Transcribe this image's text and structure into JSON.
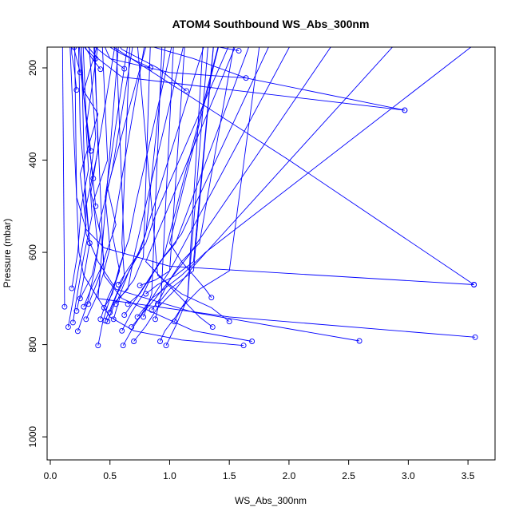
{
  "chart_data": {
    "type": "line",
    "title": "ATOM4 Southbound WS_Abs_300nm",
    "xlabel": "WS_Abs_300nm",
    "ylabel": "Pressure (mbar)",
    "xlim": [
      0,
      3.7
    ],
    "ylim": [
      1050,
      155
    ],
    "y_reversed": true,
    "x_ticks": [
      0.0,
      0.5,
      1.0,
      1.5,
      2.0,
      2.5,
      3.0,
      3.5
    ],
    "x_tick_labels": [
      "0.0",
      "0.5",
      "1.0",
      "1.5",
      "2.0",
      "2.5",
      "3.0",
      "3.5"
    ],
    "y_ticks": [
      200,
      400,
      600,
      800,
      1000
    ],
    "y_tick_labels": [
      "200",
      "400",
      "600",
      "800",
      "1000"
    ],
    "grid": false,
    "line_color": "#0000ff",
    "marker": "open-circle",
    "series": [
      {
        "x": [
          0.12,
          0.1
        ],
        "y": [
          718,
          60
        ]
      },
      {
        "x": [
          0.15,
          0.2,
          0.3,
          0.25,
          0.4,
          0.28,
          0.5
        ],
        "y": [
          762,
          690,
          540,
          430,
          300,
          250,
          60
        ]
      },
      {
        "x": [
          0.18,
          0.23,
          0.26,
          0.32,
          0.3,
          0.45
        ],
        "y": [
          678,
          600,
          500,
          420,
          330,
          60
        ]
      },
      {
        "x": [
          0.19,
          0.22,
          0.28,
          0.35,
          0.33,
          0.38,
          0.3
        ],
        "y": [
          752,
          700,
          610,
          520,
          440,
          350,
          60
        ]
      },
      {
        "x": [
          0.23,
          0.31,
          0.37,
          0.42,
          0.34,
          0.6
        ],
        "y": [
          771,
          712,
          640,
          560,
          470,
          60
        ]
      },
      {
        "x": [
          0.22,
          0.27,
          0.33,
          0.3,
          0.4,
          0.36
        ],
        "y": [
          727,
          670,
          580,
          500,
          380,
          60
        ]
      },
      {
        "x": [
          0.25,
          0.35,
          0.4,
          0.36,
          0.48,
          0.42
        ],
        "y": [
          700,
          650,
          590,
          490,
          400,
          60
        ]
      },
      {
        "x": [
          0.28,
          0.34,
          0.45,
          0.41,
          0.52,
          0.75
        ],
        "y": [
          718,
          680,
          620,
          540,
          420,
          60
        ]
      },
      {
        "x": [
          0.3,
          0.38,
          0.44,
          0.5,
          0.46,
          0.7
        ],
        "y": [
          745,
          700,
          650,
          590,
          480,
          60
        ]
      },
      {
        "x": [
          0.32,
          0.4,
          0.47,
          0.55,
          0.48,
          0.9
        ],
        "y": [
          712,
          660,
          600,
          540,
          460,
          60
        ]
      },
      {
        "x": [
          0.4,
          0.44,
          0.5,
          0.58,
          0.52,
          0.85
        ],
        "y": [
          802,
          750,
          700,
          640,
          560,
          60
        ]
      },
      {
        "x": [
          0.42,
          0.48,
          0.55,
          0.62,
          0.54
        ],
        "y": [
          745,
          700,
          660,
          600,
          60
        ]
      },
      {
        "x": [
          0.45,
          0.52,
          0.58,
          0.66,
          0.72,
          1.1
        ],
        "y": [
          720,
          690,
          630,
          570,
          490,
          60
        ]
      },
      {
        "x": [
          0.46,
          0.54,
          0.62,
          0.6,
          0.68
        ],
        "y": [
          748,
          700,
          650,
          580,
          60
        ]
      },
      {
        "x": [
          0.48,
          0.55,
          0.65,
          0.7,
          0.78,
          1.2
        ],
        "y": [
          750,
          705,
          680,
          610,
          520,
          60
        ]
      },
      {
        "x": [
          0.5,
          0.56,
          0.64,
          0.75,
          0.82,
          1.4
        ],
        "y": [
          730,
          690,
          650,
          600,
          540,
          60
        ]
      },
      {
        "x": [
          0.53,
          0.58,
          0.7,
          0.78,
          0.85
        ],
        "y": [
          745,
          700,
          660,
          610,
          60
        ]
      },
      {
        "x": [
          0.55,
          0.6,
          0.66,
          0.74,
          0.8,
          1.0
        ],
        "y": [
          712,
          680,
          640,
          600,
          560,
          60
        ]
      },
      {
        "x": [
          0.57,
          0.64,
          0.72,
          0.8,
          0.88,
          1.65
        ],
        "y": [
          670,
          640,
          610,
          580,
          520,
          60
        ]
      },
      {
        "x": [
          0.6,
          0.68,
          0.78,
          0.85,
          0.95,
          1.5
        ],
        "y": [
          770,
          730,
          690,
          650,
          610,
          60
        ]
      },
      {
        "x": [
          0.61,
          0.7,
          0.8,
          0.9,
          1.0,
          2.2
        ],
        "y": [
          802,
          760,
          720,
          680,
          640,
          60
        ]
      },
      {
        "x": [
          0.62,
          0.72,
          0.82,
          0.92,
          1.05,
          1.8
        ],
        "y": [
          736,
          700,
          660,
          620,
          580,
          60
        ]
      },
      {
        "x": [
          0.65,
          0.75,
          0.85,
          0.95,
          1.1,
          2.0
        ],
        "y": [
          712,
          690,
          650,
          610,
          560,
          60
        ]
      },
      {
        "x": [
          0.68,
          0.78,
          0.88,
          1.0,
          1.15,
          2.6
        ],
        "y": [
          762,
          730,
          700,
          660,
          610,
          60
        ]
      },
      {
        "x": [
          0.7,
          0.8,
          0.9,
          1.05,
          1.2,
          3.2
        ],
        "y": [
          793,
          760,
          720,
          680,
          630,
          60
        ]
      },
      {
        "x": [
          0.73,
          0.85,
          0.95,
          1.1,
          1.3,
          4.0
        ],
        "y": [
          740,
          700,
          680,
          650,
          600,
          60
        ]
      },
      {
        "x": [
          0.75,
          0.88,
          1.0,
          1.15
        ],
        "y": [
          672,
          660,
          640,
          60
        ]
      },
      {
        "x": [
          0.78,
          0.85,
          0.95
        ],
        "y": [
          740,
          690,
          60
        ]
      },
      {
        "x": [
          0.8,
          0.9,
          1.05,
          1.2,
          1.4
        ],
        "y": [
          690,
          670,
          650,
          620,
          60
        ]
      },
      {
        "x": [
          0.85,
          0.92,
          1.0,
          1.1,
          1.25,
          1.6
        ],
        "y": [
          725,
          700,
          660,
          620,
          580,
          60
        ]
      },
      {
        "x": [
          0.88,
          0.93,
          1.05
        ],
        "y": [
          745,
          690,
          60
        ]
      },
      {
        "x": [
          0.9,
          1.0,
          1.2,
          1.4
        ],
        "y": [
          712,
          680,
          640,
          60
        ]
      },
      {
        "x": [
          0.92,
          0.96,
          1.05,
          1.15,
          1.3
        ],
        "y": [
          793,
          770,
          740,
          700,
          60
        ]
      },
      {
        "x": [
          0.97,
          1.05,
          1.15,
          1.35
        ],
        "y": [
          802,
          760,
          700,
          60
        ]
      },
      {
        "x": [
          1.04,
          1.1,
          1.25,
          1.5,
          1.8
        ],
        "y": [
          750,
          720,
          680,
          640,
          60
        ]
      },
      {
        "x": [
          1.35,
          1.3,
          1.2,
          1.1,
          1.0,
          1.5
        ],
        "y": [
          698,
          680,
          650,
          620,
          580,
          60
        ]
      },
      {
        "x": [
          1.36,
          1.25,
          1.1,
          0.95,
          0.8,
          1.7
        ],
        "y": [
          762,
          740,
          700,
          660,
          620,
          60
        ]
      },
      {
        "x": [
          1.5,
          1.35,
          1.1,
          0.9,
          0.7
        ],
        "y": [
          750,
          720,
          690,
          650,
          60
        ]
      },
      {
        "x": [
          1.62,
          1.1,
          0.7,
          0.5,
          0.4,
          0.6
        ],
        "y": [
          802,
          790,
          770,
          740,
          700,
          60
        ]
      },
      {
        "x": [
          1.69,
          1.2,
          0.6,
          0.45,
          0.35
        ],
        "y": [
          793,
          770,
          700,
          650,
          60
        ]
      },
      {
        "x": [
          2.59,
          1.2,
          0.55,
          0.4,
          0.3,
          0.25
        ],
        "y": [
          792,
          730,
          680,
          620,
          560,
          60
        ]
      },
      {
        "x": [
          3.55,
          1.0,
          0.45,
          0.3,
          0.22,
          0.2
        ],
        "y": [
          670,
          630,
          590,
          550,
          480,
          60
        ]
      },
      {
        "x": [
          3.56,
          1.5,
          0.4,
          0.28,
          0.24,
          0.15
        ],
        "y": [
          784,
          740,
          700,
          650,
          600,
          60
        ]
      },
      {
        "x": [
          3.55,
          2.0,
          0.8,
          0.5,
          0.35,
          0.25
        ],
        "y": [
          670,
          400,
          200,
          150,
          100,
          60
        ]
      },
      {
        "x": [
          2.97,
          0.6,
          0.4,
          0.3,
          0.2
        ],
        "y": [
          292,
          220,
          180,
          150,
          60
        ]
      },
      {
        "x": [
          2.97,
          1.64,
          1.0,
          0.5,
          0.3
        ],
        "y": [
          292,
          222,
          210,
          180,
          60
        ]
      },
      {
        "x": [
          1.64,
          1.2,
          0.8,
          0.5,
          0.3
        ],
        "y": [
          222,
          180,
          150,
          120,
          60
        ]
      },
      {
        "x": [
          1.58,
          1.1,
          0.7,
          0.4
        ],
        "y": [
          163,
          140,
          120,
          60
        ]
      },
      {
        "x": [
          1.14,
          0.9,
          0.6,
          0.3
        ],
        "y": [
          250,
          200,
          160,
          60
        ]
      },
      {
        "x": [
          0.84,
          0.6,
          0.4,
          0.2
        ],
        "y": [
          200,
          170,
          140,
          60
        ]
      },
      {
        "x": [
          0.62,
          0.45,
          0.3,
          0.2
        ],
        "y": [
          202,
          170,
          140,
          60
        ]
      },
      {
        "x": [
          0.42,
          0.35,
          0.28,
          0.2
        ],
        "y": [
          203,
          180,
          150,
          60
        ]
      },
      {
        "x": [
          0.38,
          0.3,
          0.25,
          0.18
        ],
        "y": [
          180,
          160,
          140,
          60
        ]
      },
      {
        "x": [
          0.25,
          0.22,
          0.2,
          0.18
        ],
        "y": [
          210,
          180,
          160,
          60
        ]
      },
      {
        "x": [
          0.22,
          0.2,
          0.18,
          0.16
        ],
        "y": [
          248,
          200,
          170,
          60
        ]
      },
      {
        "x": [
          0.2,
          0.18,
          0.16
        ],
        "y": [
          155,
          120,
          60
        ]
      },
      {
        "x": [
          0.34,
          0.3,
          0.26,
          0.22
        ],
        "y": [
          380,
          300,
          220,
          60
        ]
      },
      {
        "x": [
          0.36,
          0.32,
          0.28,
          0.24
        ],
        "y": [
          440,
          360,
          260,
          60
        ]
      },
      {
        "x": [
          0.38,
          0.34,
          0.3,
          0.26
        ],
        "y": [
          500,
          400,
          300,
          60
        ]
      },
      {
        "x": [
          0.33,
          0.29,
          0.25,
          0.23
        ],
        "y": [
          580,
          450,
          330,
          60
        ]
      }
    ]
  }
}
